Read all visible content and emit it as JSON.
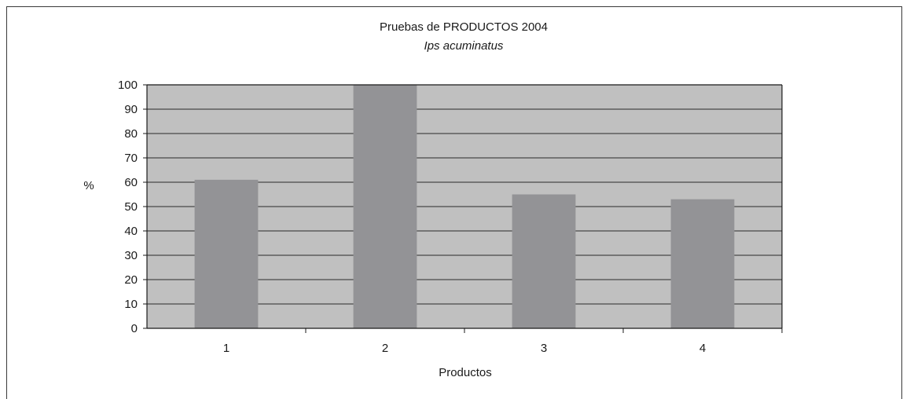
{
  "chart_data": {
    "type": "bar",
    "title": "Pruebas de PRODUCTOS 2004",
    "subtitle": "Ips acuminatus",
    "xlabel": "Productos",
    "ylabel": "%",
    "categories": [
      "1",
      "2",
      "3",
      "4"
    ],
    "values": [
      61,
      100,
      55,
      53
    ],
    "ylim": [
      0,
      100
    ],
    "yticks": [
      "0",
      "10",
      "20",
      "30",
      "40",
      "50",
      "60",
      "70",
      "80",
      "90",
      "100"
    ],
    "grid": true,
    "legend": "none",
    "colors": {
      "plot_background": "#c0c0c0",
      "bar": "#939396",
      "gridline": "#2a2a2a",
      "axis": "#1a1a1a"
    }
  }
}
